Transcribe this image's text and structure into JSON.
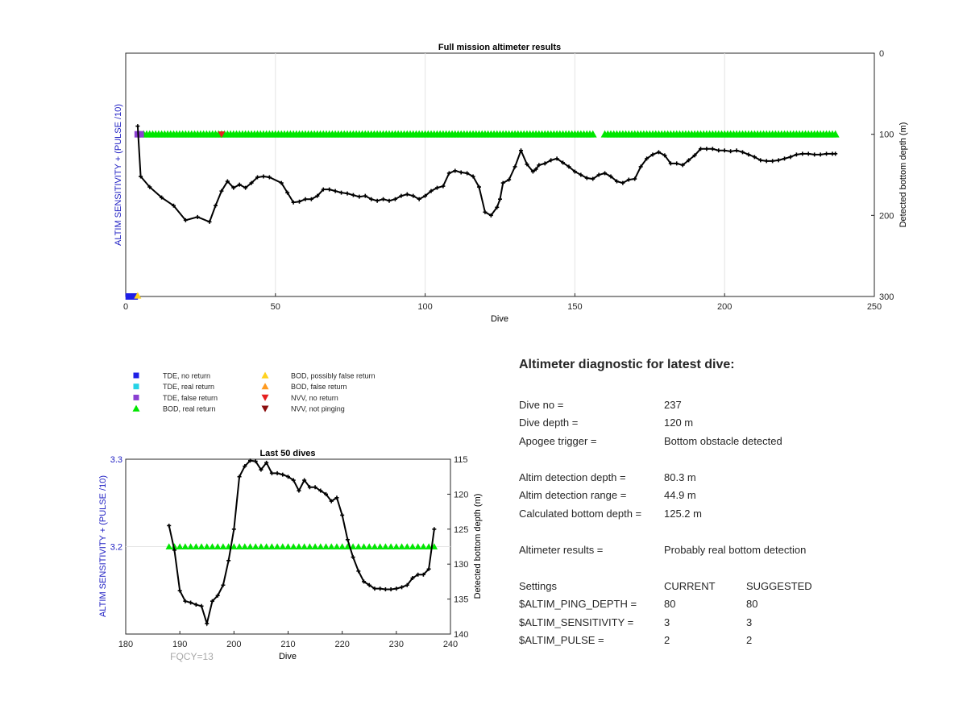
{
  "colors": {
    "black": "#000000",
    "tde_no_return": "#1f1fe6",
    "tde_real_return": "#25d3e6",
    "tde_false_return": "#8a3fd1",
    "bod_real_return": "#00e600",
    "bod_possibly_false": "#ffd21f",
    "bod_false_return": "#ff9a1f",
    "nvv_no_return": "#e62020",
    "nvv_not_pinging": "#8b0d0d",
    "left_axis": "#1c1cc2",
    "fqcy": "#a8a8a8"
  },
  "chart_data": [
    {
      "type": "line",
      "title": "Full mission altimeter results",
      "xlabel": "Dive",
      "ylabel_left": "ALTIM SENSITIVITY + (PULSE /10)",
      "ylabel_right": "Detected bottom depth (m)",
      "xlim": [
        0,
        250
      ],
      "ylim_right": [
        0,
        300
      ],
      "y_right_reversed": true,
      "xticks": [
        "0",
        "50",
        "100",
        "150",
        "200",
        "250"
      ],
      "yticks_right": [
        "0",
        "100",
        "200",
        "300"
      ],
      "grid": "vertical",
      "series": [
        {
          "name": "Detected bottom depth",
          "x": [
            4,
            5,
            8,
            12,
            16,
            20,
            24,
            28,
            30,
            32,
            34,
            36,
            38,
            40,
            42,
            44,
            46,
            48,
            52,
            54,
            56,
            58,
            60,
            62,
            64,
            66,
            68,
            70,
            72,
            74,
            76,
            78,
            80,
            82,
            84,
            86,
            88,
            90,
            92,
            94,
            96,
            98,
            100,
            102,
            104,
            106,
            108,
            110,
            112,
            114,
            116,
            118,
            120,
            122,
            124,
            125,
            126,
            128,
            130,
            132,
            134,
            136,
            137,
            138,
            140,
            142,
            144,
            146,
            148,
            150,
            152,
            154,
            156,
            158,
            160,
            162,
            164,
            166,
            168,
            170,
            172,
            174,
            176,
            178,
            180,
            182,
            184,
            186,
            188,
            190,
            192,
            194,
            196,
            198,
            200,
            202,
            204,
            206,
            208,
            210,
            212,
            214,
            216,
            218,
            220,
            222,
            224,
            226,
            228,
            230,
            232,
            234,
            236,
            237
          ],
          "y": [
            90,
            152,
            165,
            178,
            188,
            206,
            202,
            208,
            188,
            170,
            158,
            166,
            162,
            166,
            160,
            153,
            152,
            153,
            160,
            172,
            184,
            183,
            180,
            180,
            176,
            168,
            168,
            170,
            172,
            173,
            175,
            177,
            176,
            180,
            182,
            180,
            182,
            180,
            176,
            174,
            176,
            180,
            176,
            170,
            166,
            164,
            148,
            145,
            147,
            148,
            152,
            165,
            196,
            200,
            190,
            180,
            160,
            156,
            140,
            120,
            137,
            146,
            143,
            138,
            136,
            132,
            130,
            135,
            140,
            146,
            150,
            154,
            155,
            150,
            148,
            152,
            158,
            160,
            156,
            155,
            140,
            130,
            125,
            122,
            126,
            136,
            136,
            138,
            132,
            126,
            118,
            118,
            118,
            120,
            120,
            121,
            120,
            122,
            125,
            128,
            132,
            133,
            133,
            132,
            130,
            128,
            125,
            124,
            124,
            125,
            125,
            124,
            124,
            124
          ],
          "color": "#000000"
        },
        {
          "name": "BOD, real return",
          "x_range": [
            6,
            237
          ],
          "gaps": [
            [
              156,
              160
            ]
          ],
          "y": 100
        }
      ],
      "markers": [
        {
          "label": "TDE, no return",
          "x": [
            1,
            2,
            3
          ],
          "y": 300
        },
        {
          "label": "BOD, possibly false return",
          "x": [
            4
          ],
          "y": 300
        },
        {
          "label": "TDE, false return",
          "x": [
            4,
            5
          ],
          "y": 100
        },
        {
          "label": "NVV, no return",
          "x": [
            32
          ],
          "y": 100
        }
      ]
    },
    {
      "type": "line",
      "title": "Last 50 dives",
      "xlabel": "Dive",
      "ylabel_left": "ALTIM SENSITIVITY + (PULSE /10)",
      "ylabel_right": "Detected bottom depth (m)",
      "xlim": [
        180,
        240
      ],
      "ylim_left": [
        3.1,
        3.3
      ],
      "ylim_right": [
        115,
        140
      ],
      "y_right_reversed": true,
      "xticks": [
        "180",
        "190",
        "200",
        "210",
        "220",
        "230",
        "240"
      ],
      "yticks_left": [
        "3.2",
        "3.3"
      ],
      "yticks_right": [
        "115",
        "120",
        "125",
        "130",
        "135",
        "140"
      ],
      "series": [
        {
          "name": "Detected bottom depth",
          "x": [
            188,
            189,
            190,
            191,
            192,
            193,
            194,
            195,
            196,
            197,
            198,
            199,
            200,
            201,
            202,
            203,
            204,
            205,
            206,
            207,
            208,
            209,
            210,
            211,
            212,
            213,
            214,
            215,
            216,
            217,
            218,
            219,
            220,
            221,
            222,
            223,
            224,
            225,
            226,
            227,
            228,
            229,
            230,
            231,
            232,
            233,
            234,
            235,
            236,
            237
          ],
          "y": [
            124.5,
            128,
            133.8,
            135.3,
            135.5,
            135.8,
            136,
            138.5,
            135.3,
            134.5,
            133,
            129.5,
            125,
            117.5,
            116,
            115.2,
            115.3,
            116.5,
            115.5,
            117,
            117,
            117.2,
            117.5,
            118,
            119.5,
            118,
            119,
            119,
            119.5,
            120,
            121,
            120.5,
            123,
            126.5,
            129,
            131,
            132.5,
            133,
            133.5,
            133.5,
            133.6,
            133.6,
            133.5,
            133.3,
            133,
            132,
            131.5,
            131.5,
            130.7,
            125
          ],
          "color": "#000000"
        },
        {
          "name": "BOD, real return",
          "x_range": [
            188,
            237
          ],
          "y": 3.2
        }
      ]
    }
  ],
  "charts": {
    "full": {
      "title": "Full mission altimeter results",
      "xlabel": "Dive",
      "ylabel_left": "ALTIM SENSITIVITY + (PULSE /10)",
      "ylabel_right": "Detected bottom depth (m)"
    },
    "last50": {
      "title": "Last 50 dives",
      "xlabel": "Dive",
      "ylabel_left": "ALTIM SENSITIVITY + (PULSE /10)",
      "ylabel_right": "Detected bottom depth (m)",
      "fqcy": "FQCY=13"
    }
  },
  "legend": [
    {
      "label": "TDE, no return",
      "shape": "square",
      "color_key": "tde_no_return"
    },
    {
      "label": "TDE, real return",
      "shape": "square",
      "color_key": "tde_real_return"
    },
    {
      "label": "TDE, false return",
      "shape": "square",
      "color_key": "tde_false_return"
    },
    {
      "label": "BOD, real return",
      "shape": "triangle-up",
      "color_key": "bod_real_return"
    },
    {
      "label": "BOD, possibly false return",
      "shape": "triangle-up",
      "color_key": "bod_possibly_false"
    },
    {
      "label": "BOD, false return",
      "shape": "triangle-up",
      "color_key": "bod_false_return"
    },
    {
      "label": "NVV, no return",
      "shape": "triangle-down",
      "color_key": "nvv_no_return"
    },
    {
      "label": "NVV, not pinging",
      "shape": "triangle-down",
      "color_key": "nvv_not_pinging"
    }
  ],
  "diagnostic": {
    "title": "Altimeter diagnostic for latest dive:",
    "dive_no_label": "Dive no =",
    "dive_no": "237",
    "dive_depth_label": "Dive depth =",
    "dive_depth": "120 m",
    "apogee_label": "Apogee trigger =",
    "apogee": "Bottom obstacle detected",
    "det_depth_label": "Altim detection depth =",
    "det_depth": "80.3 m",
    "det_range_label": "Altim detection range =",
    "det_range": "44.9 m",
    "calc_depth_label": "Calculated bottom depth =",
    "calc_depth": "125.2 m",
    "results_label": "Altimeter results =",
    "results": "Probably real bottom detection",
    "settings_label": "Settings",
    "current_label": "CURRENT",
    "suggested_label": "SUGGESTED",
    "ping_label": "$ALTIM_PING_DEPTH =",
    "ping_current": "80",
    "ping_suggested": "80",
    "sens_label": "$ALTIM_SENSITIVITY =",
    "sens_current": "3",
    "sens_suggested": "3",
    "pulse_label": "$ALTIM_PULSE =",
    "pulse_current": "2",
    "pulse_suggested": "2"
  }
}
